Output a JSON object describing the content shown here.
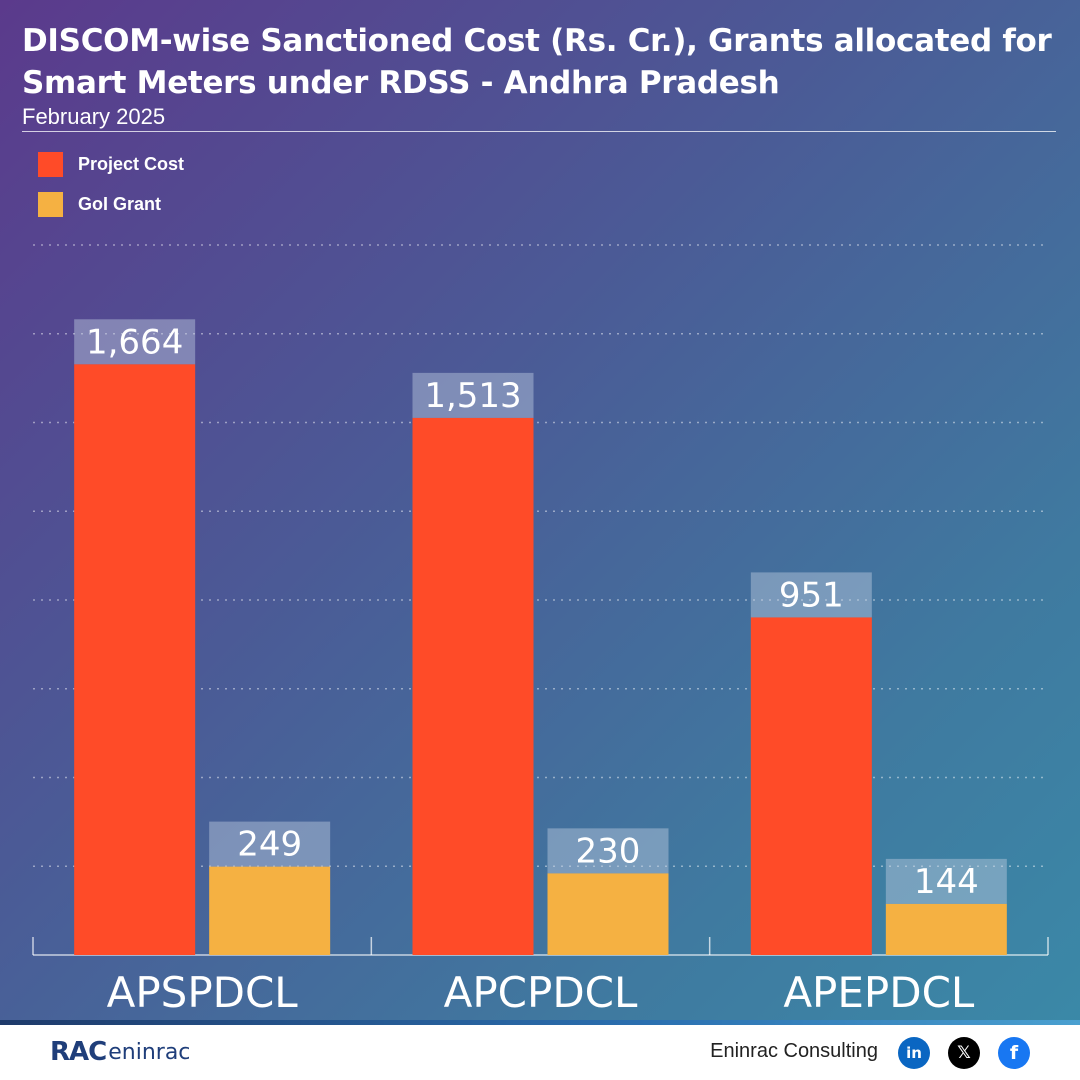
{
  "header": {
    "title": "DISCOM-wise Sanctioned Cost (Rs. Cr.), Grants allocated for Smart Meters under RDSS - Andhra Pradesh",
    "subtitle": "February 2025"
  },
  "legend": [
    {
      "label": "Project Cost",
      "color": "#ff4b28"
    },
    {
      "label": "GoI Grant",
      "color": "#f5b142"
    }
  ],
  "chart_data": {
    "type": "bar",
    "title": "DISCOM-wise Sanctioned Cost (Rs. Cr.), Grants allocated for Smart Meters under RDSS - Andhra Pradesh",
    "subtitle": "February 2025",
    "categories": [
      "APSPDCL",
      "APCPDCL",
      "APEPDCL"
    ],
    "series": [
      {
        "name": "Project Cost",
        "values": [
          1664,
          1513,
          951
        ],
        "labels": [
          "1,664",
          "1,513",
          "951"
        ],
        "color": "#ff4b28"
      },
      {
        "name": "GoI Grant",
        "values": [
          249,
          230,
          144
        ],
        "labels": [
          "249",
          "230",
          "144"
        ],
        "color": "#f5b142"
      }
    ],
    "ylim": [
      0,
      2000
    ],
    "grid": true,
    "legend_position": "top-left"
  },
  "footer": {
    "logo_mark": "RAC",
    "logo_text": "eninrac",
    "brand": "Eninrac Consulting",
    "social": [
      {
        "icon": "linkedin-icon",
        "glyph": "in"
      },
      {
        "icon": "x-icon",
        "glyph": "𝕏"
      },
      {
        "icon": "facebook-icon",
        "glyph": "f"
      }
    ]
  }
}
